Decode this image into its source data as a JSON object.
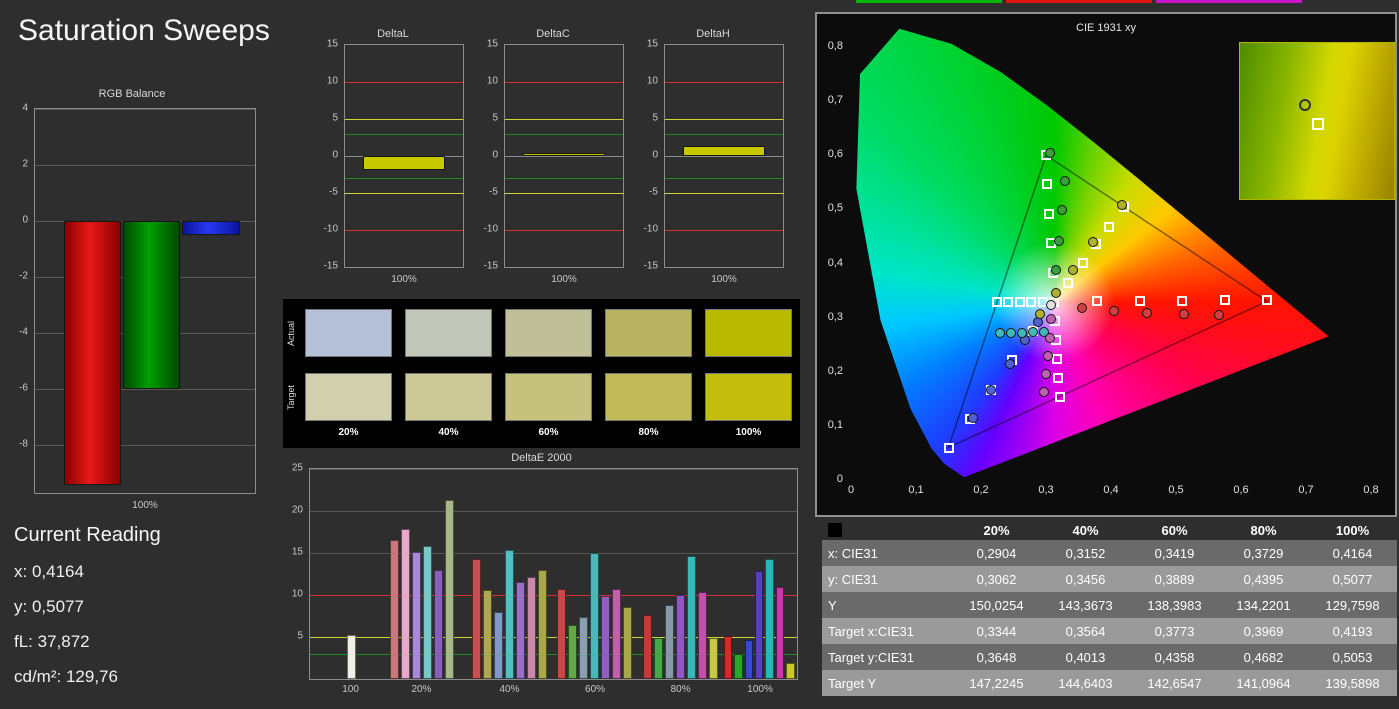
{
  "window": {
    "title": "Saturation Sweeps"
  },
  "top_tabs": {
    "segments": [
      {
        "name": "tab-green",
        "color": "#00b400"
      },
      {
        "name": "tab-red",
        "color": "#dc1414"
      },
      {
        "name": "tab-magenta",
        "color": "#c814c8"
      }
    ]
  },
  "current_reading": {
    "heading": "Current Reading",
    "lines": [
      {
        "label": "x:",
        "value": "0,4164"
      },
      {
        "label": "y:",
        "value": "0,5077"
      },
      {
        "label": "fL:",
        "value": "37,872"
      },
      {
        "label": "cd/m²:",
        "value": "129,76"
      }
    ]
  },
  "swatch_panel": {
    "row_labels": [
      "Actual",
      "Target"
    ],
    "col_labels": [
      "20%",
      "40%",
      "60%",
      "80%",
      "100%"
    ],
    "actual_colors": [
      "#b4bfd8",
      "#c0c6b8",
      "#c0c098",
      "#b8b462",
      "#b9ba00"
    ],
    "target_colors": [
      "#d2cfae",
      "#cdc996",
      "#c6c17c",
      "#c0ba58",
      "#c3bd0c"
    ]
  },
  "results_table": {
    "columns": [
      "",
      "20%",
      "40%",
      "60%",
      "80%",
      "100%"
    ],
    "rows": [
      {
        "label": "x: CIE31",
        "values": [
          "0,2904",
          "0,3152",
          "0,3419",
          "0,3729",
          "0,4164"
        ]
      },
      {
        "label": "y: CIE31",
        "values": [
          "0,3062",
          "0,3456",
          "0,3889",
          "0,4395",
          "0,5077"
        ]
      },
      {
        "label": "Y",
        "values": [
          "150,0254",
          "143,3673",
          "138,3983",
          "134,2201",
          "129,7598"
        ]
      },
      {
        "label": "Target x:CIE31",
        "values": [
          "0,3344",
          "0,3564",
          "0,3773",
          "0,3969",
          "0,4193"
        ]
      },
      {
        "label": "Target y:CIE31",
        "values": [
          "0,3648",
          "0,4013",
          "0,4358",
          "0,4682",
          "0,5053"
        ]
      },
      {
        "label": "Target Y",
        "values": [
          "147,2245",
          "144,6403",
          "142,6547",
          "141,0964",
          "139,5898"
        ]
      }
    ]
  },
  "chart_data": [
    {
      "id": "rgb_balance",
      "type": "bar",
      "title": "RGB Balance",
      "xlabel": "100%",
      "categories": [
        "Red",
        "Green",
        "Blue"
      ],
      "values": [
        -9.4,
        -6.0,
        -0.5
      ],
      "colors": [
        "#e81818",
        "#00a000",
        "#2838f0"
      ],
      "colors_edge": [
        "#8a0000",
        "#004b00",
        "#0a14a0"
      ],
      "ylim": [
        -9.7,
        4
      ],
      "yticks": [
        4,
        2,
        0,
        -2,
        -4,
        -6,
        -8
      ]
    },
    {
      "id": "delta_l",
      "type": "bar",
      "title": "DeltaL",
      "xlabel": "100%",
      "categories": [
        "100%"
      ],
      "values": [
        -1.9
      ],
      "bar_color": "#c8c800",
      "ylim": [
        -15,
        15
      ],
      "yticks": [
        15,
        10,
        5,
        0,
        -5,
        -10,
        -15
      ],
      "ref_lines": [
        {
          "y": 10,
          "color": "#d23232"
        },
        {
          "y": 5,
          "color": "#d2d232"
        },
        {
          "y": 3,
          "color": "#1e8c1e"
        },
        {
          "y": 0,
          "color": "#8c8c8c"
        },
        {
          "y": -3,
          "color": "#1e8c1e"
        },
        {
          "y": -5,
          "color": "#d2d232"
        },
        {
          "y": -10,
          "color": "#d23232"
        }
      ]
    },
    {
      "id": "delta_c",
      "type": "bar",
      "title": "DeltaC",
      "xlabel": "100%",
      "categories": [
        "100%"
      ],
      "values": [
        0.4
      ],
      "bar_color": "#c8c800",
      "ylim": [
        -15,
        15
      ],
      "yticks": [
        15,
        10,
        5,
        0,
        -5,
        -10,
        -15
      ],
      "ref_lines": [
        {
          "y": 10,
          "color": "#d23232"
        },
        {
          "y": 5,
          "color": "#d2d232"
        },
        {
          "y": 3,
          "color": "#1e8c1e"
        },
        {
          "y": 0,
          "color": "#8c8c8c"
        },
        {
          "y": -3,
          "color": "#1e8c1e"
        },
        {
          "y": -5,
          "color": "#d2d232"
        },
        {
          "y": -10,
          "color": "#d23232"
        }
      ]
    },
    {
      "id": "delta_h",
      "type": "bar",
      "title": "DeltaH",
      "xlabel": "100%",
      "categories": [
        "100%"
      ],
      "values": [
        1.4
      ],
      "bar_color": "#c8c800",
      "ylim": [
        -15,
        15
      ],
      "yticks": [
        15,
        10,
        5,
        0,
        -5,
        -10,
        -15
      ],
      "ref_lines": [
        {
          "y": 10,
          "color": "#d23232"
        },
        {
          "y": 5,
          "color": "#d2d232"
        },
        {
          "y": 3,
          "color": "#1e8c1e"
        },
        {
          "y": 0,
          "color": "#8c8c8c"
        },
        {
          "y": -3,
          "color": "#1e8c1e"
        },
        {
          "y": -5,
          "color": "#d2d232"
        },
        {
          "y": -10,
          "color": "#d23232"
        }
      ]
    },
    {
      "id": "deltae2000",
      "type": "bar",
      "title": "DeltaE 2000",
      "ylim": [
        0,
        25
      ],
      "yticks": [
        5,
        10,
        15,
        20,
        25
      ],
      "ref_lines": [
        {
          "y": 10,
          "color": "#d23232"
        },
        {
          "y": 5,
          "color": "#d2d232"
        },
        {
          "y": 3,
          "color": "#1e8c1e"
        }
      ],
      "groups": [
        {
          "label": "100",
          "bars": [
            {
              "color": "#f0f0e8",
              "value": 5.2
            }
          ]
        },
        {
          "label": "20%",
          "bars": [
            {
              "color": "#c87878",
              "value": 16.6
            },
            {
              "color": "#e8a8c8",
              "value": 17.8
            },
            {
              "color": "#a888d8",
              "value": 15.1
            },
            {
              "color": "#78c8c8",
              "value": 15.8
            },
            {
              "color": "#8860b8",
              "value": 13.0
            },
            {
              "color": "#a8b888",
              "value": 21.3
            }
          ]
        },
        {
          "label": "40%",
          "bars": [
            {
              "color": "#c85050",
              "value": 14.3
            },
            {
              "color": "#b0a850",
              "value": 10.6
            },
            {
              "color": "#8098c8",
              "value": 8.0
            },
            {
              "color": "#50c0c0",
              "value": 15.4
            },
            {
              "color": "#9870c8",
              "value": 11.6
            },
            {
              "color": "#c888a8",
              "value": 12.2
            },
            {
              "color": "#a8a848",
              "value": 13.0
            }
          ]
        },
        {
          "label": "60%",
          "bars": [
            {
              "color": "#c84848",
              "value": 10.7
            },
            {
              "color": "#60a848",
              "value": 6.4
            },
            {
              "color": "#88a0b0",
              "value": 7.4
            },
            {
              "color": "#48b8b8",
              "value": 15.0
            },
            {
              "color": "#9060c0",
              "value": 9.9
            },
            {
              "color": "#c060a8",
              "value": 10.7
            },
            {
              "color": "#a8a848",
              "value": 8.6
            }
          ]
        },
        {
          "label": "80%",
          "bars": [
            {
              "color": "#c83838",
              "value": 7.6
            },
            {
              "color": "#48a848",
              "value": 4.9
            },
            {
              "color": "#8898a8",
              "value": 8.8
            },
            {
              "color": "#9058c0",
              "value": 10.0
            },
            {
              "color": "#38b8b8",
              "value": 14.7
            },
            {
              "color": "#c050a8",
              "value": 10.4
            },
            {
              "color": "#c8c848",
              "value": 4.9
            }
          ]
        },
        {
          "label": "100%",
          "bars": [
            {
              "color": "#d82828",
              "value": 5.1
            },
            {
              "color": "#28a828",
              "value": 3.0
            },
            {
              "color": "#3848d0",
              "value": 4.6
            },
            {
              "color": "#5840c0",
              "value": 12.8
            },
            {
              "color": "#28b8b8",
              "value": 14.3
            },
            {
              "color": "#c838a8",
              "value": 10.9
            },
            {
              "color": "#c8c828",
              "value": 1.9
            }
          ]
        }
      ]
    },
    {
      "id": "cie",
      "type": "scatter",
      "title": "CIE 1931 xy",
      "xlim": [
        0,
        0.8
      ],
      "ylim": [
        0,
        0.8
      ],
      "tick_labels": [
        "0",
        "0,1",
        "0,2",
        "0,3",
        "0,4",
        "0,5",
        "0,6",
        "0,7",
        "0,8"
      ],
      "gamut_triangle": [
        [
          0.64,
          0.33
        ],
        [
          0.3,
          0.6
        ],
        [
          0.15,
          0.06
        ]
      ],
      "measured_series": [
        {
          "name": "white",
          "color": "#e0e0e0",
          "points": [
            [
              0.307,
              0.323
            ]
          ]
        },
        {
          "name": "red",
          "color": "#d04040",
          "points": [
            [
              0.356,
              0.318
            ],
            [
              0.404,
              0.312
            ],
            [
              0.455,
              0.308
            ],
            [
              0.512,
              0.306
            ],
            [
              0.566,
              0.304
            ]
          ]
        },
        {
          "name": "green",
          "color": "#3aa03a",
          "points": [
            [
              0.316,
              0.388
            ],
            [
              0.32,
              0.442
            ],
            [
              0.324,
              0.498
            ],
            [
              0.329,
              0.552
            ],
            [
              0.306,
              0.604
            ]
          ]
        },
        {
          "name": "blue",
          "color": "#5060d0",
          "points": [
            [
              0.288,
              0.291
            ],
            [
              0.268,
              0.258
            ],
            [
              0.244,
              0.215
            ],
            [
              0.216,
              0.166
            ],
            [
              0.188,
              0.114
            ]
          ]
        },
        {
          "name": "cyan",
          "color": "#40b8b8",
          "points": [
            [
              0.297,
              0.273
            ],
            [
              0.28,
              0.273
            ],
            [
              0.263,
              0.272
            ],
            [
              0.246,
              0.272
            ],
            [
              0.229,
              0.271
            ]
          ]
        },
        {
          "name": "magenta",
          "color": "#c060b0",
          "points": [
            [
              0.308,
              0.297
            ],
            [
              0.306,
              0.263
            ],
            [
              0.303,
              0.229
            ],
            [
              0.3,
              0.196
            ],
            [
              0.297,
              0.163
            ]
          ]
        },
        {
          "name": "yellow",
          "color": "#b0b030",
          "points": [
            [
              0.2904,
              0.3062
            ],
            [
              0.3152,
              0.3456
            ],
            [
              0.3419,
              0.3889
            ],
            [
              0.3729,
              0.4395
            ],
            [
              0.4164,
              0.5077
            ]
          ]
        }
      ],
      "target_series": [
        {
          "name": "white",
          "points": [
            [
              0.3127,
              0.329
            ]
          ]
        },
        {
          "name": "red",
          "points": [
            [
              0.378,
              0.331
            ],
            [
              0.444,
              0.331
            ],
            [
              0.509,
              0.331
            ],
            [
              0.575,
              0.332
            ],
            [
              0.64,
              0.332
            ]
          ]
        },
        {
          "name": "green",
          "points": [
            [
              0.31,
              0.383
            ],
            [
              0.307,
              0.437
            ],
            [
              0.305,
              0.492
            ],
            [
              0.302,
              0.546
            ],
            [
              0.3,
              0.6
            ]
          ]
        },
        {
          "name": "blue",
          "points": [
            [
              0.28,
              0.275
            ],
            [
              0.248,
              0.221
            ],
            [
              0.215,
              0.167
            ],
            [
              0.183,
              0.113
            ],
            [
              0.15,
              0.06
            ]
          ]
        },
        {
          "name": "cyan",
          "points": [
            [
              0.295,
              0.329
            ],
            [
              0.277,
              0.329
            ],
            [
              0.26,
              0.329
            ],
            [
              0.242,
              0.329
            ],
            [
              0.225,
              0.329
            ]
          ]
        },
        {
          "name": "magenta",
          "points": [
            [
              0.314,
              0.294
            ],
            [
              0.316,
              0.259
            ],
            [
              0.317,
              0.224
            ],
            [
              0.319,
              0.189
            ],
            [
              0.321,
              0.154
            ]
          ]
        },
        {
          "name": "yellow",
          "points": [
            [
              0.3344,
              0.3648
            ],
            [
              0.3564,
              0.4013
            ],
            [
              0.3773,
              0.4358
            ],
            [
              0.3969,
              0.4682
            ],
            [
              0.4193,
              0.5053
            ]
          ]
        }
      ]
    }
  ]
}
